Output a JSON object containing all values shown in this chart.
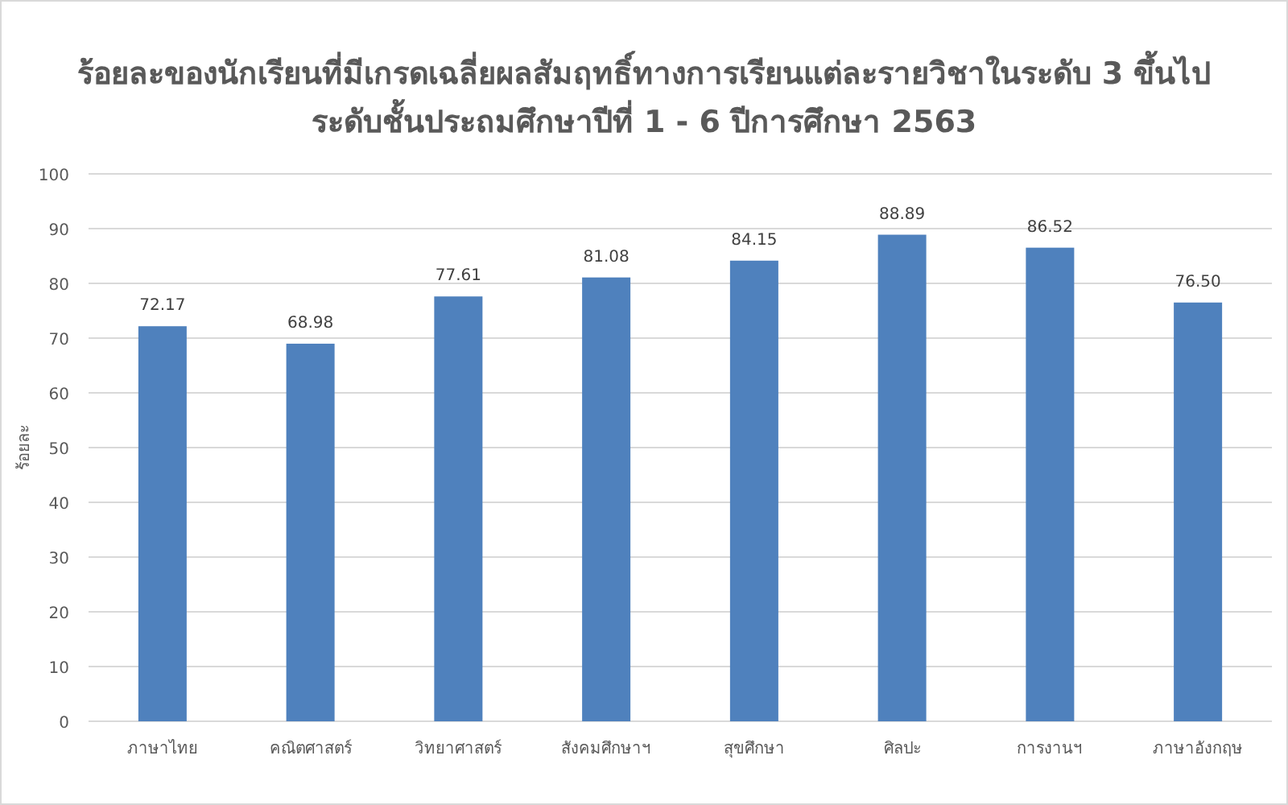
{
  "chart_data": {
    "type": "bar",
    "title": "ร้อยละของนักเรียนที่มีเกรดเฉลี่ยผลสัมฤทธิ์ทางการเรียนแต่ละรายวิชาในระดับ 3 ขึ้นไป",
    "subtitle": "ระดับชั้นประถมศึกษาปีที่ 1 - 6 ปีการศึกษา 2563",
    "ylabel": "ร้อยละ",
    "categories": [
      "ภาษาไทย",
      "คณิตศาสตร์",
      "วิทยาศาสตร์",
      "สังคมศึกษาฯ",
      "สุขศึกษา",
      "ศิลปะ",
      "การงานฯ",
      "ภาษาอังกฤษ"
    ],
    "series": [
      {
        "color": "#4f81bd",
        "values": [
          72.17,
          68.98,
          77.61,
          81.08,
          84.15,
          88.89,
          86.52,
          76.5
        ],
        "value_labels": [
          "72.17",
          "68.98",
          "77.61",
          "81.08",
          "84.15",
          "88.89",
          "86.52",
          "76.50"
        ]
      }
    ],
    "ylim": [
      0,
      100
    ],
    "yticks": [
      0,
      10,
      20,
      30,
      40,
      50,
      60,
      70,
      80,
      90,
      100
    ],
    "grid": "y"
  }
}
